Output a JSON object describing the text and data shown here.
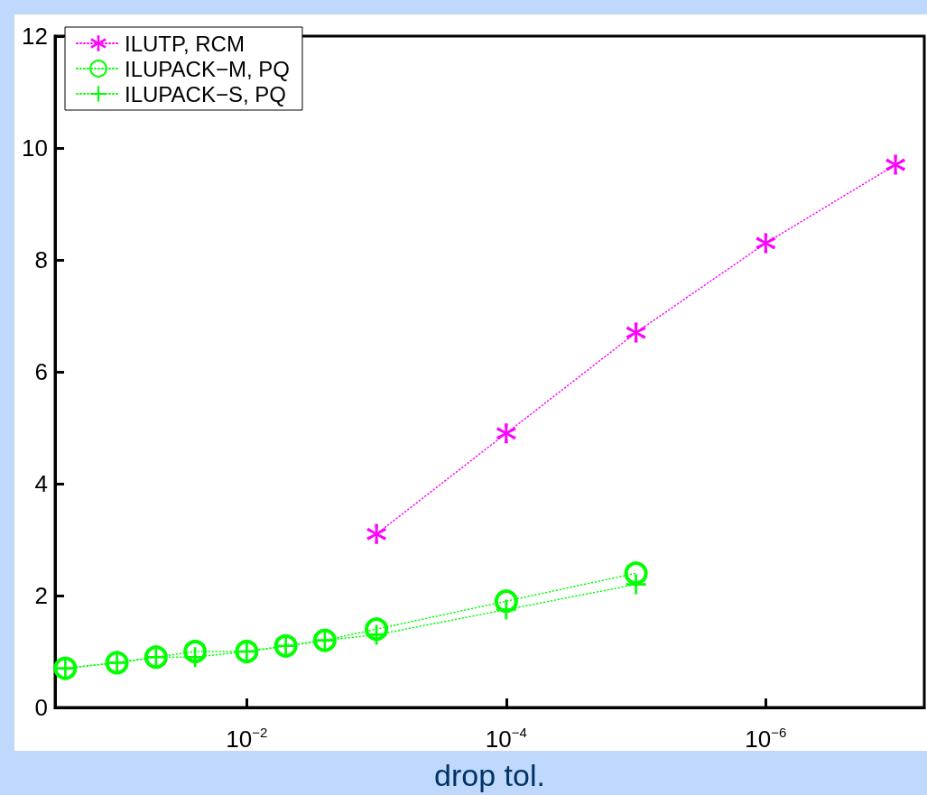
{
  "chart_data": {
    "type": "line",
    "xlabel": "drop tol.",
    "log": "x",
    "xlim": [
      0.3,
      6e-08
    ],
    "xticks": [
      {
        "value": 0.01,
        "label": "10$^{−2}$"
      },
      {
        "value": 0.0001,
        "label": "10$^{−4}$"
      },
      {
        "value": 1e-06,
        "label": "10$^{−6}$"
      }
    ],
    "ylim": [
      0,
      12
    ],
    "yticks": [
      0,
      2,
      4,
      6,
      8,
      10,
      12
    ],
    "grid": false,
    "legend": "top left",
    "line_style": "dotted",
    "series": [
      {
        "name": "ILUTP, RCM",
        "color": "#ff00ff",
        "marker": "star",
        "x": [
          0.001,
          0.0001,
          1e-05,
          1e-06,
          1e-07
        ],
        "values": [
          3.1,
          4.9,
          6.7,
          8.3,
          9.7
        ]
      },
      {
        "name": "ILUPACK−M, PQ",
        "color": "#00ff00",
        "marker": "circle",
        "x": [
          0.25,
          0.1,
          0.05,
          0.025,
          0.01,
          0.005,
          0.0025,
          0.001,
          0.0001,
          1e-05
        ],
        "values": [
          0.7,
          0.8,
          0.9,
          1.0,
          1.0,
          1.1,
          1.2,
          1.4,
          1.9,
          2.4
        ]
      },
      {
        "name": "ILUPACK−S, PQ",
        "color": "#00ff00",
        "marker": "cross",
        "x": [
          0.25,
          0.1,
          0.05,
          0.025,
          0.01,
          0.005,
          0.0025,
          0.001,
          0.0001,
          1e-05
        ],
        "values": [
          0.7,
          0.8,
          0.9,
          0.9,
          1.0,
          1.1,
          1.2,
          1.3,
          1.75,
          2.2
        ]
      }
    ]
  }
}
